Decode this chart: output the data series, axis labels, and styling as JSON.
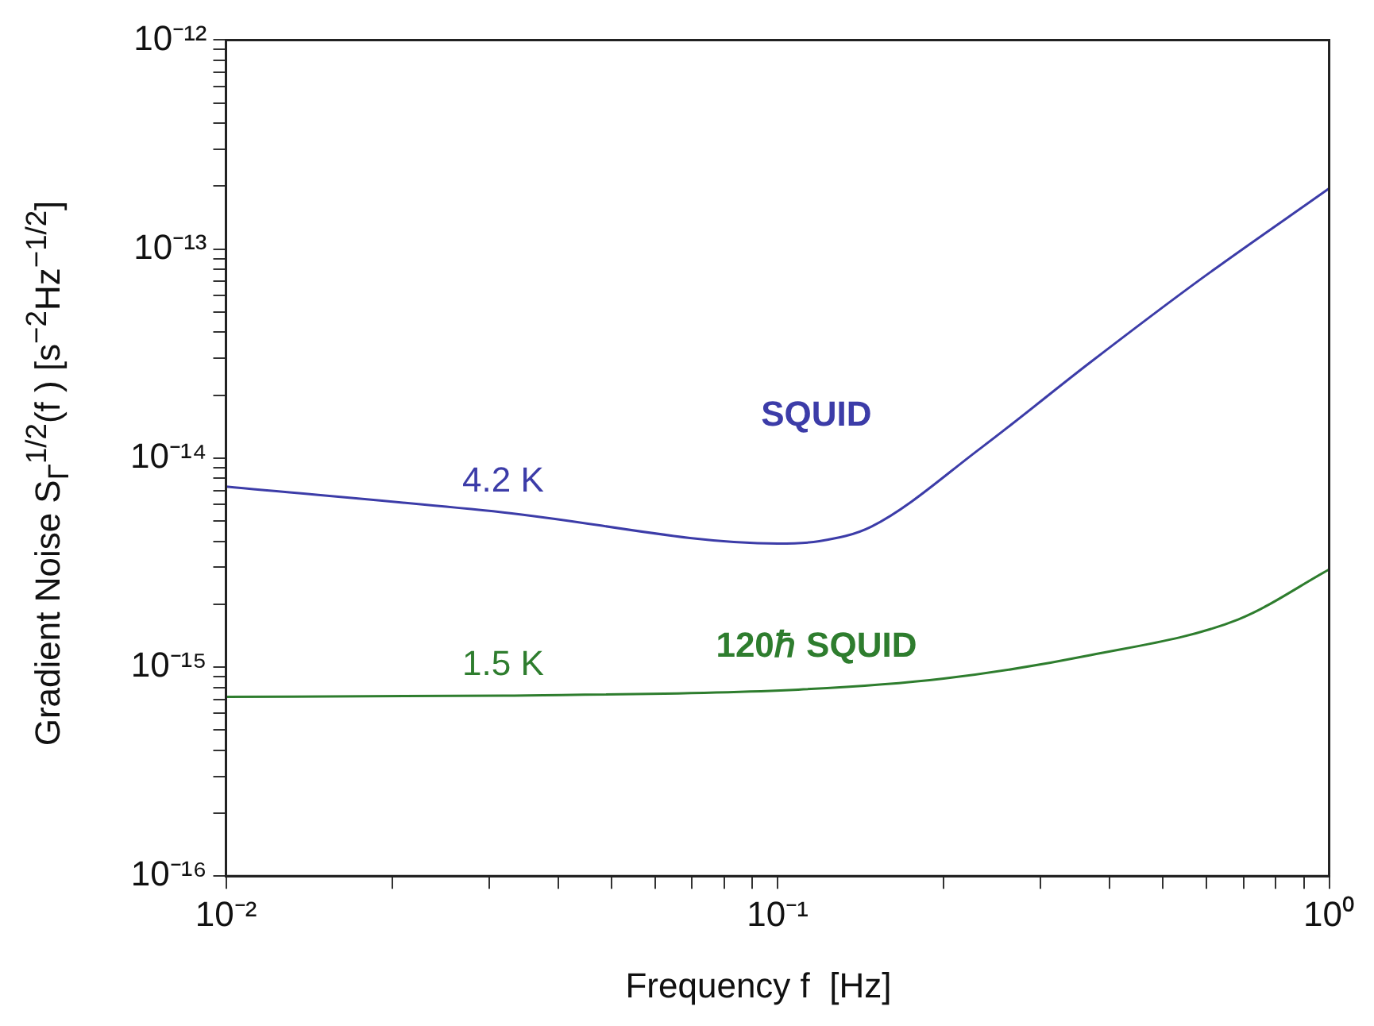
{
  "chart_data": {
    "type": "line",
    "xlabel": "Frequency f  [Hz]",
    "ylabel": "Gradient Noise S$_{Γ}$$^{1/2}$(f ) [s$^{−2}$Hz$^{−1/2}$]",
    "log": "xy",
    "grid": false,
    "legend": false,
    "marker": "none",
    "line_style": "solid",
    "xlim": [
      0.01,
      1
    ],
    "ylim": [
      1e-16,
      1e-12
    ],
    "xticks": [
      {
        "value": 0.01,
        "label": "10⁻²"
      },
      {
        "value": 0.02,
        "label": null
      },
      {
        "value": 0.03,
        "label": null
      },
      {
        "value": 0.04,
        "label": null
      },
      {
        "value": 0.05,
        "label": null
      },
      {
        "value": 0.06,
        "label": null
      },
      {
        "value": 0.07,
        "label": null
      },
      {
        "value": 0.08,
        "label": null
      },
      {
        "value": 0.09,
        "label": null
      },
      {
        "value": 0.1,
        "label": "10⁻¹"
      },
      {
        "value": 0.2,
        "label": null
      },
      {
        "value": 0.3,
        "label": null
      },
      {
        "value": 0.4,
        "label": null
      },
      {
        "value": 0.5,
        "label": null
      },
      {
        "value": 0.6,
        "label": null
      },
      {
        "value": 0.7,
        "label": null
      },
      {
        "value": 0.8,
        "label": null
      },
      {
        "value": 0.9,
        "label": null
      },
      {
        "value": 1,
        "label": "10⁰"
      }
    ],
    "yticks": [
      {
        "value": 1e-16,
        "label": "10⁻¹⁶"
      },
      {
        "value": 2e-16,
        "label": null
      },
      {
        "value": 3e-16,
        "label": null
      },
      {
        "value": 4e-16,
        "label": null
      },
      {
        "value": 5e-16,
        "label": null
      },
      {
        "value": 6e-16,
        "label": null
      },
      {
        "value": 7e-16,
        "label": null
      },
      {
        "value": 8e-16,
        "label": null
      },
      {
        "value": 9e-16,
        "label": null
      },
      {
        "value": 1e-15,
        "label": "10⁻¹⁵"
      },
      {
        "value": 2e-15,
        "label": null
      },
      {
        "value": 3e-15,
        "label": null
      },
      {
        "value": 4e-15,
        "label": null
      },
      {
        "value": 5e-15,
        "label": null
      },
      {
        "value": 6e-15,
        "label": null
      },
      {
        "value": 7e-15,
        "label": null
      },
      {
        "value": 8e-15,
        "label": null
      },
      {
        "value": 9e-15,
        "label": null
      },
      {
        "value": 1e-14,
        "label": "10⁻¹⁴"
      },
      {
        "value": 2e-14,
        "label": null
      },
      {
        "value": 3e-14,
        "label": null
      },
      {
        "value": 4e-14,
        "label": null
      },
      {
        "value": 5e-14,
        "label": null
      },
      {
        "value": 6e-14,
        "label": null
      },
      {
        "value": 7e-14,
        "label": null
      },
      {
        "value": 8e-14,
        "label": null
      },
      {
        "value": 9e-14,
        "label": null
      },
      {
        "value": 1e-13,
        "label": "10⁻¹³"
      },
      {
        "value": 2e-13,
        "label": null
      },
      {
        "value": 3e-13,
        "label": null
      },
      {
        "value": 4e-13,
        "label": null
      },
      {
        "value": 5e-13,
        "label": null
      },
      {
        "value": 6e-13,
        "label": null
      },
      {
        "value": 7e-13,
        "label": null
      },
      {
        "value": 8e-13,
        "label": null
      },
      {
        "value": 9e-13,
        "label": null
      },
      {
        "value": 1e-12,
        "label": "10⁻¹²"
      }
    ],
    "series": [
      {
        "name": "SQUID",
        "color": "#3c3ca8",
        "x": [
          0.01,
          0.0318,
          0.1,
          0.119,
          0.148,
          0.234,
          0.369,
          0.586,
          1
        ],
        "values": [
          7.3e-15,
          5.5e-15,
          3.9e-15,
          4e-15,
          4.7e-15,
          1.12e-14,
          2.87e-14,
          7.2e-14,
          1.95e-13
        ]
      },
      {
        "name": "120ℏ SQUID",
        "color": "#2e7d2e",
        "x": [
          0.01,
          0.0318,
          0.109,
          0.2,
          0.369,
          0.684,
          1
        ],
        "values": [
          7.2e-16,
          7.3e-16,
          7.8e-16,
          8.8e-16,
          1.14e-15,
          1.69e-15,
          2.93e-15
        ]
      }
    ],
    "annotations": [
      "4.2 K",
      "1.5 K"
    ]
  }
}
